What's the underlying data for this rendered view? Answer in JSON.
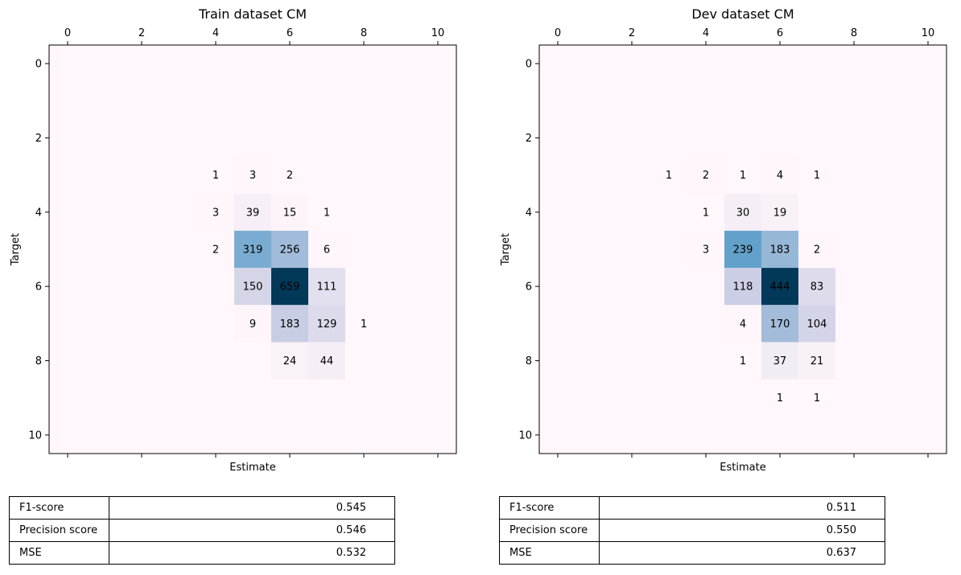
{
  "chart_data": [
    {
      "type": "heatmap",
      "title": "Train dataset CM",
      "xlabel": "Estimate",
      "ylabel": "Target",
      "x_ticks": [
        0,
        2,
        4,
        6,
        8,
        10
      ],
      "y_ticks": [
        0,
        2,
        4,
        6,
        8,
        10
      ],
      "xlim": [
        -0.5,
        10.5
      ],
      "ylim": [
        10.5,
        -0.5
      ],
      "colormap": "PuBu",
      "vmax": 659,
      "cells": [
        {
          "row": 3,
          "col": 4,
          "value": 1
        },
        {
          "row": 3,
          "col": 5,
          "value": 3
        },
        {
          "row": 3,
          "col": 6,
          "value": 2
        },
        {
          "row": 4,
          "col": 4,
          "value": 3
        },
        {
          "row": 4,
          "col": 5,
          "value": 39
        },
        {
          "row": 4,
          "col": 6,
          "value": 15
        },
        {
          "row": 4,
          "col": 7,
          "value": 1
        },
        {
          "row": 5,
          "col": 4,
          "value": 2
        },
        {
          "row": 5,
          "col": 5,
          "value": 319
        },
        {
          "row": 5,
          "col": 6,
          "value": 256
        },
        {
          "row": 5,
          "col": 7,
          "value": 6
        },
        {
          "row": 6,
          "col": 5,
          "value": 150
        },
        {
          "row": 6,
          "col": 6,
          "value": 659
        },
        {
          "row": 6,
          "col": 7,
          "value": 111
        },
        {
          "row": 7,
          "col": 5,
          "value": 9
        },
        {
          "row": 7,
          "col": 6,
          "value": 183
        },
        {
          "row": 7,
          "col": 7,
          "value": 129
        },
        {
          "row": 7,
          "col": 8,
          "value": 1
        },
        {
          "row": 8,
          "col": 6,
          "value": 24
        },
        {
          "row": 8,
          "col": 7,
          "value": 44
        }
      ]
    },
    {
      "type": "heatmap",
      "title": "Dev dataset CM",
      "xlabel": "Estimate",
      "ylabel": "Target",
      "x_ticks": [
        0,
        2,
        4,
        6,
        8,
        10
      ],
      "y_ticks": [
        0,
        2,
        4,
        6,
        8,
        10
      ],
      "xlim": [
        -0.5,
        10.5
      ],
      "ylim": [
        10.5,
        -0.5
      ],
      "colormap": "PuBu",
      "vmax": 444,
      "cells": [
        {
          "row": 3,
          "col": 3,
          "value": 1
        },
        {
          "row": 3,
          "col": 4,
          "value": 2
        },
        {
          "row": 3,
          "col": 5,
          "value": 1
        },
        {
          "row": 3,
          "col": 6,
          "value": 4
        },
        {
          "row": 3,
          "col": 7,
          "value": 1
        },
        {
          "row": 4,
          "col": 4,
          "value": 1
        },
        {
          "row": 4,
          "col": 5,
          "value": 30
        },
        {
          "row": 4,
          "col": 6,
          "value": 19
        },
        {
          "row": 5,
          "col": 4,
          "value": 3
        },
        {
          "row": 5,
          "col": 5,
          "value": 239
        },
        {
          "row": 5,
          "col": 6,
          "value": 183
        },
        {
          "row": 5,
          "col": 7,
          "value": 2
        },
        {
          "row": 6,
          "col": 5,
          "value": 118
        },
        {
          "row": 6,
          "col": 6,
          "value": 444
        },
        {
          "row": 6,
          "col": 7,
          "value": 83
        },
        {
          "row": 7,
          "col": 5,
          "value": 4
        },
        {
          "row": 7,
          "col": 6,
          "value": 170
        },
        {
          "row": 7,
          "col": 7,
          "value": 104
        },
        {
          "row": 8,
          "col": 5,
          "value": 1
        },
        {
          "row": 8,
          "col": 6,
          "value": 37
        },
        {
          "row": 8,
          "col": 7,
          "value": 21
        },
        {
          "row": 9,
          "col": 6,
          "value": 1
        },
        {
          "row": 9,
          "col": 7,
          "value": 1
        }
      ]
    }
  ],
  "tables": {
    "train": [
      {
        "metric": "F1-score",
        "value": "0.545"
      },
      {
        "metric": "Precision score",
        "value": "0.546"
      },
      {
        "metric": "MSE",
        "value": "0.532"
      }
    ],
    "dev": [
      {
        "metric": "F1-score",
        "value": "0.511"
      },
      {
        "metric": "Precision score",
        "value": "0.550"
      },
      {
        "metric": "MSE",
        "value": "0.637"
      }
    ]
  }
}
